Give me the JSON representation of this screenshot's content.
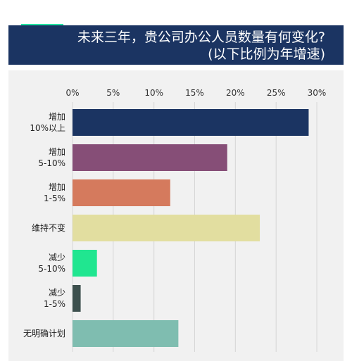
{
  "header": {
    "title_line1": "未来三年，贵公司办公人员数量有何变化?",
    "title_line2": "(以下比例为年增速)"
  },
  "colors": {
    "header_bg": "#1b3462",
    "accent": "#22e3a2",
    "panel_bg": "#f1f1f1"
  },
  "chart_data": {
    "type": "bar",
    "orientation": "horizontal",
    "categories": [
      [
        "增加",
        "10%以上"
      ],
      [
        "增加",
        "5-10%"
      ],
      [
        "增加",
        "1-5%"
      ],
      [
        "维持不变"
      ],
      [
        "减少",
        "5-10%"
      ],
      [
        "减少",
        "1-5%"
      ],
      [
        "无明确计划"
      ]
    ],
    "values": [
      29,
      19,
      12,
      23,
      3,
      1,
      13
    ],
    "colors": [
      "#1b3462",
      "#864e77",
      "#d57a5d",
      "#e2dea0",
      "#20e690",
      "#3d504e",
      "#7fbdb0"
    ],
    "xlim": [
      0,
      30
    ],
    "xticks": [
      0,
      5,
      10,
      15,
      20,
      25,
      30
    ],
    "xtick_labels": [
      "0%",
      "5%",
      "10%",
      "15%",
      "20%",
      "25%",
      "30%"
    ],
    "grid": true
  }
}
